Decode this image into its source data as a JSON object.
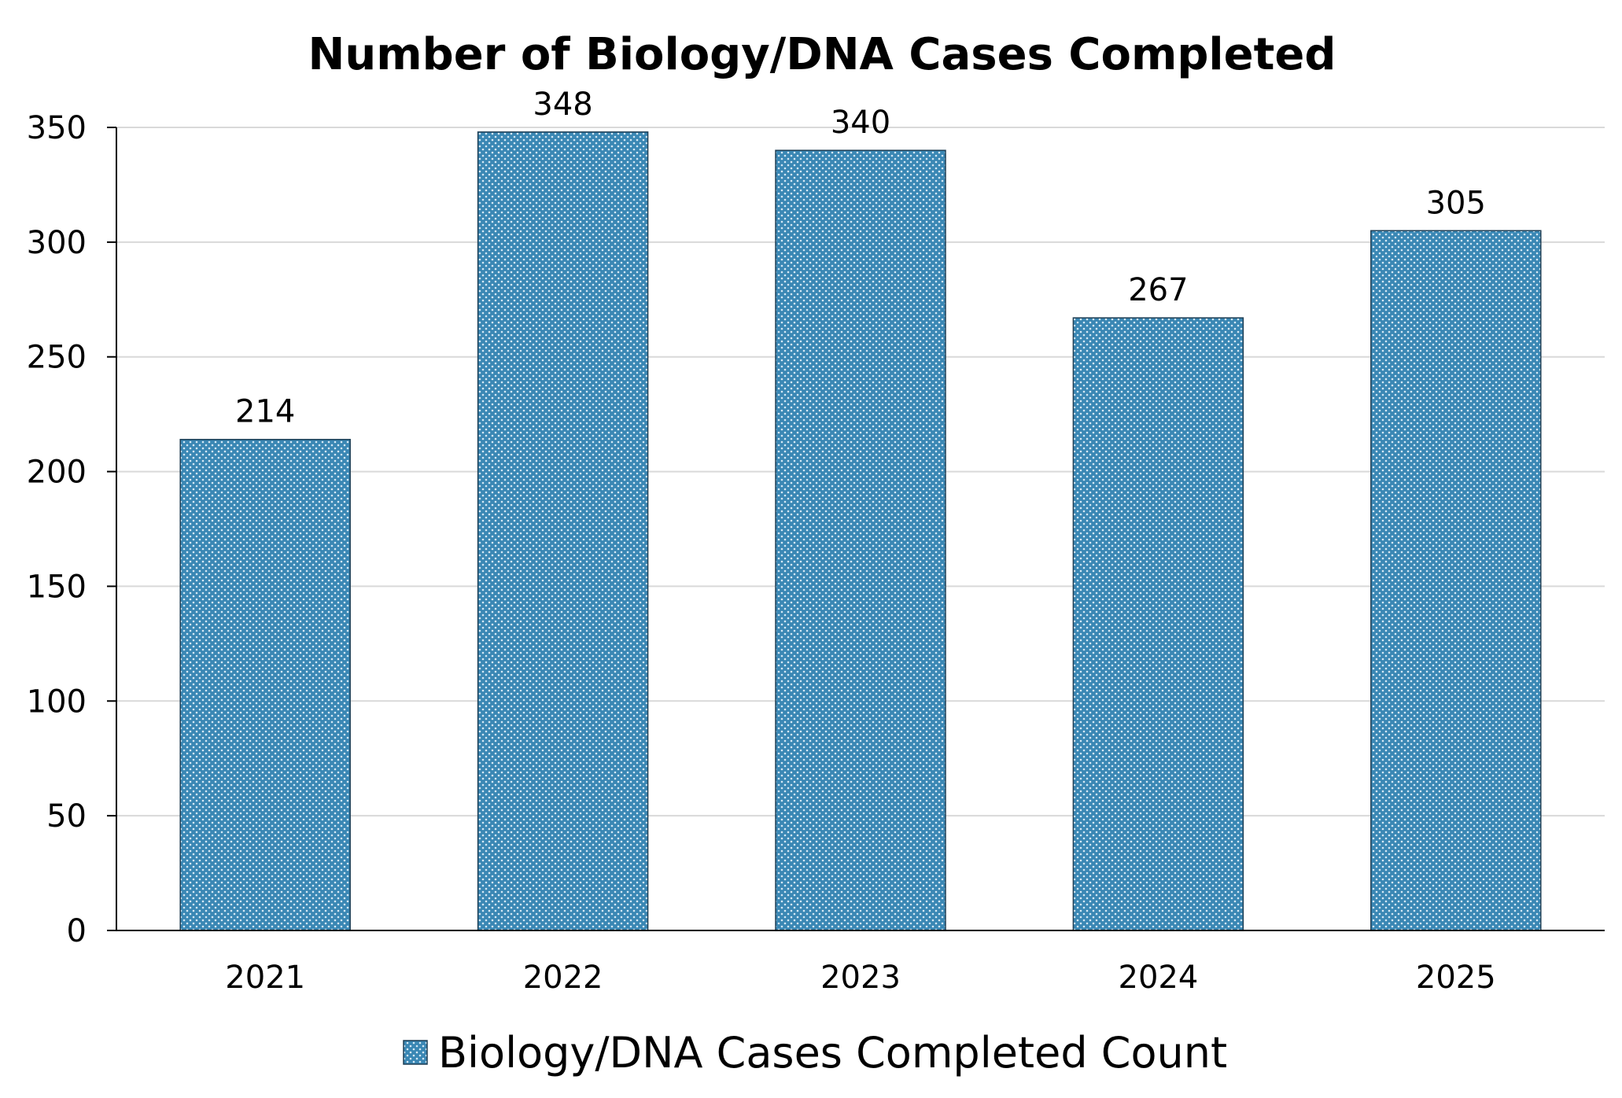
{
  "chart_data": {
    "type": "bar",
    "title": "Number of Biology/DNA Cases Completed",
    "categories": [
      "2021",
      "2022",
      "2023",
      "2024",
      "2025"
    ],
    "series": [
      {
        "name": "Biology/DNA Cases Completed Count",
        "values": [
          214,
          348,
          340,
          267,
          305
        ],
        "color": "#3a87b4"
      }
    ],
    "ylim": [
      0,
      350
    ],
    "yticks": [
      0,
      50,
      100,
      150,
      200,
      250,
      300,
      350
    ],
    "data_labels": [
      "214",
      "348",
      "340",
      "267",
      "305"
    ],
    "grid": true,
    "legend_position": "bottom",
    "xlabel": "",
    "ylabel": ""
  }
}
